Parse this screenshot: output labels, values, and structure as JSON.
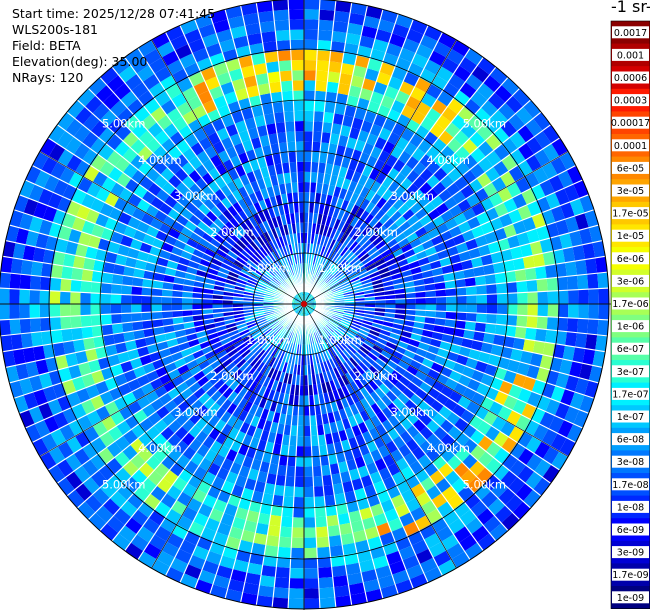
{
  "info": {
    "start_time": "Start time: 2025/12/28 07:41:45",
    "instrument": "WLS200s-181",
    "field": "Field: BETA",
    "elevation": "Elevation(deg): 35.00",
    "nrays": "NRays: 120"
  },
  "colorbar": {
    "title": "-1 sr-",
    "labels": [
      "0.0017",
      "0.001",
      "0.0006",
      "0.0003",
      "0.00017",
      "0.0001",
      "6e-05",
      "3e-05",
      "1.7e-05",
      "1e-05",
      "6e-06",
      "3e-06",
      "1.7e-06",
      "1e-06",
      "6e-07",
      "3e-07",
      "1.7e-07",
      "1e-07",
      "6e-08",
      "3e-08",
      "1.7e-08",
      "1e-08",
      "6e-09",
      "3e-09",
      "1.7e-09",
      "1e-09"
    ],
    "colors": [
      "#8b0000",
      "#b00000",
      "#d40000",
      "#ff1a00",
      "#ff4400",
      "#ff6600",
      "#ff8800",
      "#ffa500",
      "#ffc800",
      "#ffe600",
      "#f5ff00",
      "#d2ff2a",
      "#a8ff56",
      "#7fff80",
      "#56ffa8",
      "#2affd2",
      "#00f0ff",
      "#00c8ff",
      "#00a0ff",
      "#0078ff",
      "#0050ff",
      "#0028ff",
      "#0000ff",
      "#0000d4",
      "#0000aa",
      "#000080"
    ]
  },
  "chart_data": {
    "type": "ppi",
    "field": "BETA",
    "n_rays": 120,
    "elevation_deg": 35.0,
    "range_rings_km": [
      1.0,
      2.0,
      3.0,
      4.0,
      5.0
    ],
    "ring_labels": [
      "1.00km",
      "2.00km",
      "3.00km",
      "4.00km",
      "5.00km"
    ],
    "max_range_km": 5.86,
    "scale": "log",
    "value_range": [
      1e-09,
      0.0017
    ],
    "typical_beta_by_range": [
      {
        "range_km": 0.5,
        "beta": 1.7e-07
      },
      {
        "range_km": 1.5,
        "beta": 8e-09
      },
      {
        "range_km": 2.5,
        "beta": 3e-08
      },
      {
        "range_km": 3.5,
        "beta": 3e-08
      },
      {
        "range_km": 4.5,
        "beta": 2e-07
      },
      {
        "range_km": 5.5,
        "beta": 2e-08
      }
    ],
    "enhanced_layer": {
      "range_km": [
        4.4,
        4.8
      ],
      "beta": 1.7e-05
    }
  }
}
